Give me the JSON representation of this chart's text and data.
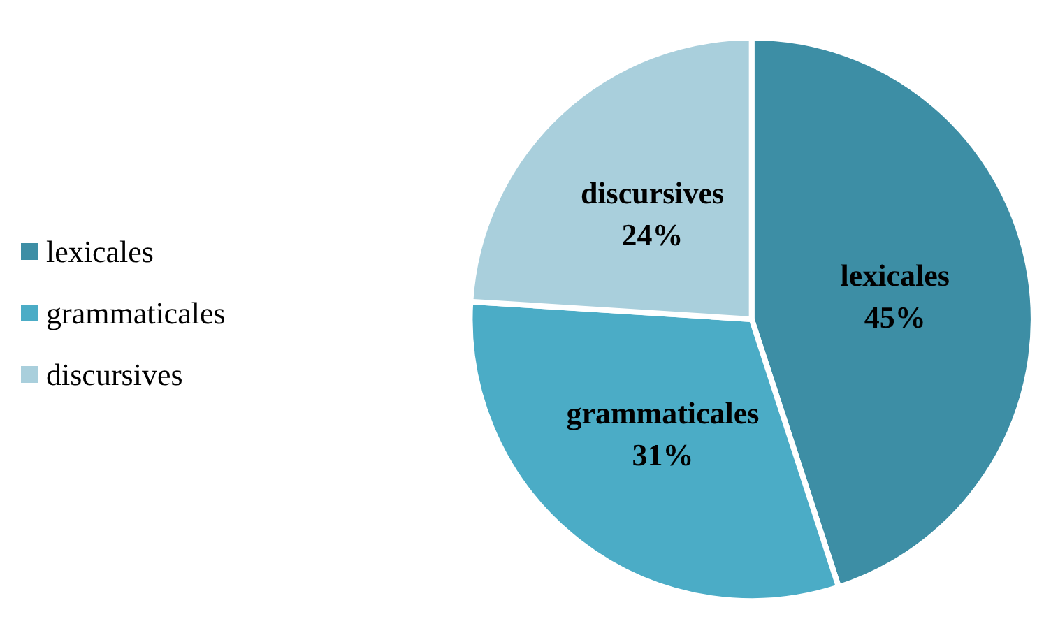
{
  "chart_data": {
    "type": "pie",
    "categories": [
      "lexicales",
      "grammaticales",
      "discursives"
    ],
    "values": [
      45,
      31,
      24
    ],
    "colors": [
      "#3d8ea5",
      "#4bacc6",
      "#a9cfdc"
    ],
    "value_labels": [
      "45%",
      "31%",
      "24%"
    ],
    "legend": "left"
  }
}
